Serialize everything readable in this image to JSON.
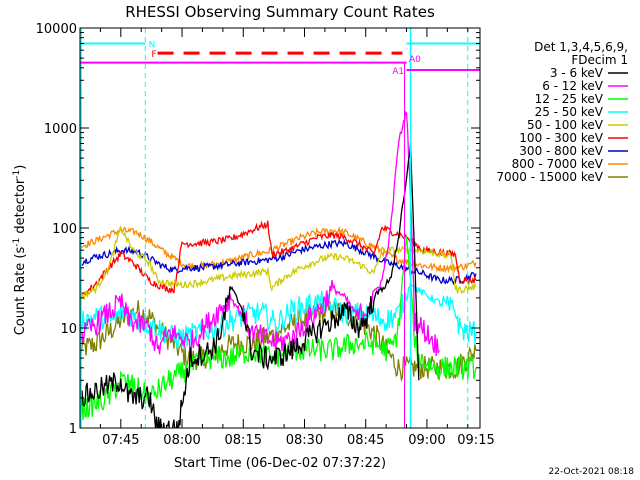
{
  "chart_data": {
    "type": "line",
    "title": "RHESSI Observing Summary Count Rates",
    "xlabel": "Start Time (06-Dec-02 07:37:22)",
    "ylabel_main": "Count Rate (s",
    "ylabel_sup1": "-1",
    "ylabel_mid": " detector",
    "ylabel_sup2": "-1",
    "ylabel_end": ")",
    "yscale": "log",
    "ylim": [
      1,
      10000
    ],
    "xlim_min": [
      -2,
      96
    ],
    "x_ticks": [
      {
        "t": 8,
        "label": "07:45"
      },
      {
        "t": 23,
        "label": "08:00"
      },
      {
        "t": 38,
        "label": "08:15"
      },
      {
        "t": 53,
        "label": "08:30"
      },
      {
        "t": 68,
        "label": "08:45"
      },
      {
        "t": 83,
        "label": "09:00"
      },
      {
        "t": 98,
        "label": "09:15"
      }
    ],
    "y_ticks": [
      {
        "v": 1,
        "label": "1"
      },
      {
        "v": 10,
        "label": "10"
      },
      {
        "v": 100,
        "label": "100"
      },
      {
        "v": 1000,
        "label": "1000"
      },
      {
        "v": 10000,
        "label": "10000"
      }
    ],
    "legend": {
      "header": [
        "Det 1,3,4,5,6,9,",
        "FDecim 1"
      ],
      "placement": "right"
    },
    "series": [
      {
        "name": "3 - 6 keV",
        "color": "#000000",
        "t": [
          -2,
          8,
          10,
          15,
          17,
          22,
          25,
          30,
          32,
          35,
          38,
          40,
          43,
          46,
          50,
          54,
          57,
          60,
          63,
          66,
          68,
          70,
          72,
          74,
          76,
          78,
          79,
          80,
          81
        ],
        "v": [
          2,
          3,
          2,
          2,
          1,
          1,
          5,
          6,
          8,
          25,
          15,
          6,
          5,
          5,
          6,
          8,
          10,
          12,
          15,
          10,
          12,
          20,
          25,
          30,
          80,
          300,
          700,
          50,
          3
        ]
      },
      {
        "name": "6 - 12 keV",
        "color": "#ff00ff",
        "t": [
          -2,
          8,
          10,
          15,
          17,
          20,
          23,
          25,
          30,
          32,
          35,
          38,
          40,
          43,
          46,
          50,
          54,
          57,
          60,
          63,
          66,
          68,
          70,
          72,
          74,
          76,
          78,
          79,
          80,
          84,
          86
        ],
        "v": [
          8,
          18,
          12,
          10,
          6,
          9,
          8,
          7,
          12,
          15,
          20,
          13,
          9,
          8,
          7,
          8,
          12,
          16,
          25,
          20,
          13,
          15,
          22,
          30,
          90,
          700,
          1500,
          200,
          12,
          8,
          6
        ]
      },
      {
        "name": "12 - 25 keV",
        "color": "#00ff00",
        "t": [
          -2,
          5,
          8,
          12,
          15,
          20,
          25,
          30,
          35,
          40,
          45,
          50,
          55,
          60,
          65,
          70,
          73,
          75,
          76,
          77,
          78,
          79,
          80,
          81,
          85,
          88,
          92,
          95
        ],
        "v": [
          1.5,
          2,
          3,
          2.5,
          2,
          3,
          4,
          5,
          5,
          6,
          5,
          6,
          6,
          6,
          7,
          7,
          6,
          7,
          10,
          30,
          80,
          30,
          7,
          5,
          4,
          4,
          4,
          4
        ]
      },
      {
        "name": "25 - 50 keV",
        "color": "#00ffff",
        "t": [
          -2,
          3,
          6,
          9,
          12,
          15,
          17,
          19,
          21,
          23,
          27,
          32,
          35,
          38,
          40,
          43,
          46,
          50,
          54,
          57,
          60,
          63,
          66,
          70,
          73,
          75,
          76,
          78,
          79,
          80,
          84,
          87,
          90,
          91,
          93,
          95
        ],
        "v": [
          12,
          13,
          12,
          15,
          12,
          11,
          10,
          9,
          8,
          8,
          9,
          10,
          12,
          13,
          14,
          14,
          11,
          15,
          17,
          18,
          16,
          14,
          14,
          13,
          12,
          13,
          14,
          20,
          30,
          25,
          20,
          17,
          15,
          10,
          9,
          9
        ]
      },
      {
        "name": "50 - 100 keV",
        "color": "#cccc00",
        "t": [
          -2,
          2,
          5,
          8,
          11,
          15,
          17,
          20,
          23,
          26,
          30,
          35,
          40,
          44,
          45,
          48,
          52,
          55,
          58,
          61,
          64,
          67,
          70,
          72,
          74,
          76,
          78,
          80,
          83,
          86,
          89,
          90,
          91,
          93,
          95
        ],
        "v": [
          20,
          25,
          40,
          100,
          60,
          45,
          30,
          28,
          27,
          28,
          30,
          33,
          35,
          37,
          25,
          32,
          40,
          45,
          50,
          52,
          48,
          42,
          35,
          60,
          60,
          60,
          60,
          60,
          58,
          55,
          52,
          24,
          24,
          25,
          26
        ]
      },
      {
        "name": "100 - 300 keV",
        "color": "#ff0000",
        "t": [
          -2,
          2,
          5,
          8,
          11,
          15,
          17,
          19,
          21,
          23,
          26,
          30,
          35,
          40,
          44,
          45,
          48,
          52,
          56,
          60,
          63,
          66,
          70,
          72,
          75,
          78,
          80,
          82,
          86,
          89,
          90,
          91,
          93,
          95
        ],
        "v": [
          20,
          28,
          40,
          55,
          45,
          30,
          27,
          25,
          24,
          70,
          70,
          72,
          78,
          95,
          110,
          55,
          58,
          68,
          80,
          85,
          80,
          70,
          55,
          100,
          90,
          80,
          70,
          60,
          57,
          55,
          54,
          30,
          30,
          30
        ]
      },
      {
        "name": "300 - 800 keV",
        "color": "#0000cc",
        "t": [
          -2,
          2,
          5,
          8,
          12,
          15,
          18,
          21,
          24,
          28,
          32,
          36,
          40,
          44,
          48,
          52,
          56,
          60,
          63,
          66,
          70,
          73,
          76,
          79,
          82,
          86,
          90,
          93,
          95
        ],
        "v": [
          45,
          52,
          55,
          60,
          58,
          50,
          42,
          38,
          40,
          40,
          42,
          44,
          46,
          48,
          52,
          60,
          65,
          70,
          70,
          62,
          52,
          45,
          42,
          38,
          35,
          30,
          30,
          32,
          35
        ]
      },
      {
        "name": "800 - 7000 keV",
        "color": "#ff8800",
        "t": [
          -2,
          2,
          5,
          8,
          12,
          15,
          18,
          21,
          24,
          28,
          32,
          36,
          40,
          44,
          48,
          52,
          56,
          60,
          63,
          66,
          70,
          73,
          76,
          79,
          82,
          86,
          90,
          93,
          95
        ],
        "v": [
          65,
          75,
          85,
          95,
          90,
          75,
          60,
          50,
          42,
          42,
          44,
          48,
          54,
          58,
          68,
          80,
          90,
          95,
          90,
          78,
          65,
          55,
          48,
          45,
          42,
          40,
          40,
          42,
          45
        ]
      },
      {
        "name": "7000 - 15000 keV",
        "color": "#808000",
        "t": [
          -2,
          2,
          5,
          8,
          12,
          15,
          18,
          21,
          24,
          28,
          32,
          36,
          40,
          44,
          48,
          52,
          56,
          60,
          63,
          66,
          70,
          73,
          76,
          79,
          82,
          86,
          90,
          93,
          95
        ],
        "v": [
          6,
          7,
          9,
          12,
          15,
          13,
          9,
          7,
          5,
          5,
          6,
          7,
          7,
          8,
          10,
          12,
          14,
          15,
          14,
          12,
          9,
          6,
          4,
          4,
          4,
          4,
          4,
          5,
          6
        ]
      }
    ],
    "annotations": [
      {
        "label": "N"
      },
      {
        "label": "F"
      },
      {
        "label": "A1"
      },
      {
        "label": "A0"
      }
    ],
    "footer": "22-Oct-2021 08:18"
  }
}
